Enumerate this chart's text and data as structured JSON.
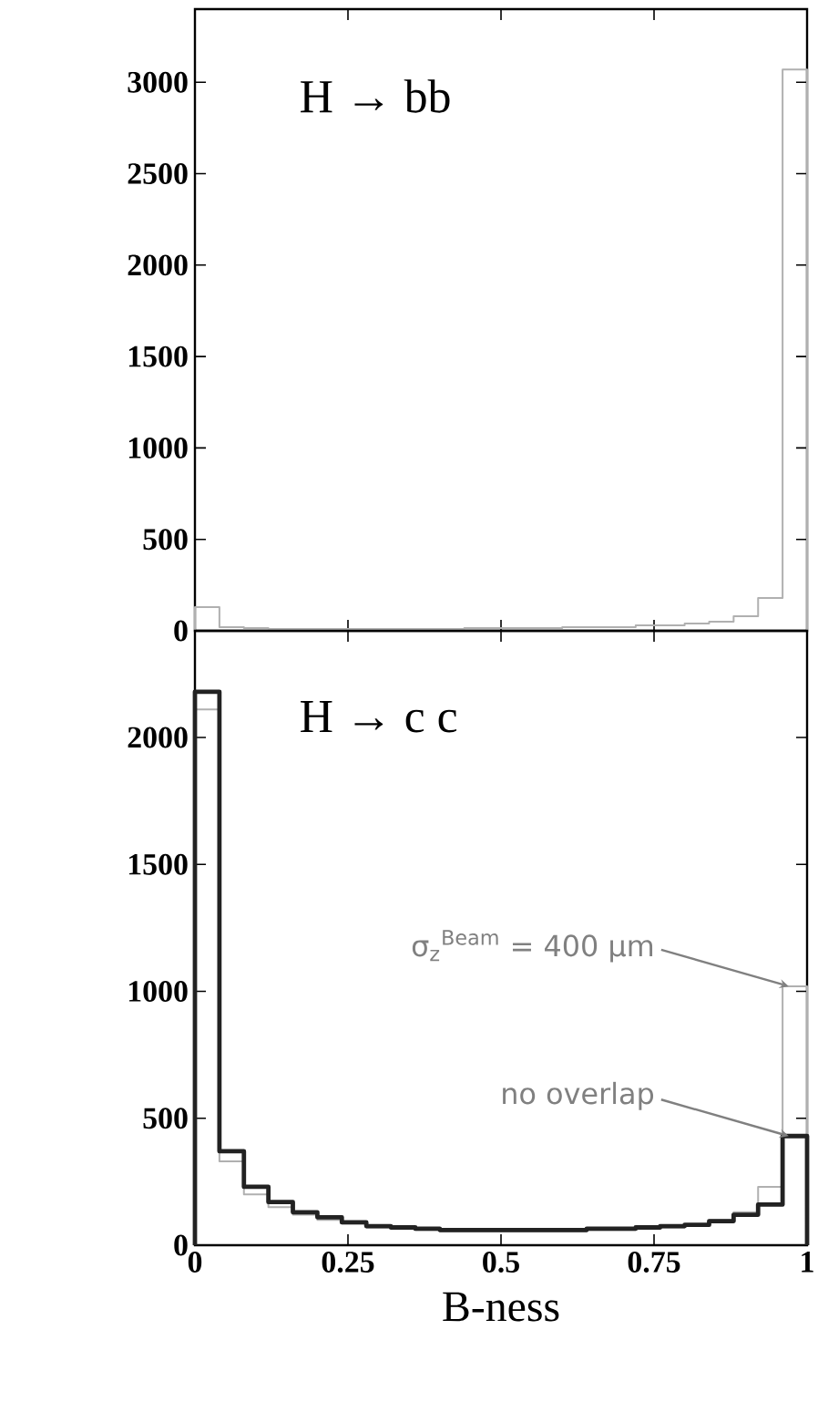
{
  "chart_data": [
    {
      "type": "histogram",
      "title": "H → bb",
      "bins": [
        0,
        0.04,
        0.08,
        0.12,
        0.16,
        0.2,
        0.24,
        0.28,
        0.32,
        0.36,
        0.4,
        0.44,
        0.48,
        0.52,
        0.56,
        0.6,
        0.64,
        0.68,
        0.72,
        0.76,
        0.8,
        0.84,
        0.88,
        0.92,
        0.96,
        1.0
      ],
      "series": [
        {
          "color": "#b0b0b0",
          "values": [
            130,
            20,
            15,
            10,
            10,
            10,
            10,
            10,
            10,
            10,
            10,
            15,
            15,
            15,
            15,
            20,
            20,
            20,
            30,
            30,
            40,
            50,
            80,
            180,
            3070
          ]
        }
      ],
      "xlim": [
        0,
        1
      ],
      "xticks": [
        {
          "value": 0,
          "label": null
        },
        {
          "value": 0.25,
          "label": null
        },
        {
          "value": 0.5,
          "label": null
        },
        {
          "value": 0.75,
          "label": null
        },
        {
          "value": 1,
          "label": null
        }
      ],
      "ylim": [
        0,
        3400
      ],
      "yticks": [
        0,
        500,
        1000,
        1500,
        2000,
        2500,
        3000
      ],
      "tick_labels": "y"
    },
    {
      "type": "histogram",
      "title": "H → c c",
      "xlabel": "B-ness",
      "bins": [
        0,
        0.04,
        0.08,
        0.12,
        0.16,
        0.2,
        0.24,
        0.28,
        0.32,
        0.36,
        0.4,
        0.44,
        0.48,
        0.52,
        0.56,
        0.6,
        0.64,
        0.68,
        0.72,
        0.76,
        0.8,
        0.84,
        0.88,
        0.92,
        0.96,
        1.0
      ],
      "series": [
        {
          "color": "#b0b0b0",
          "values": [
            2110,
            330,
            200,
            150,
            120,
            100,
            85,
            70,
            65,
            60,
            55,
            55,
            55,
            55,
            55,
            55,
            60,
            60,
            65,
            70,
            80,
            100,
            130,
            230,
            1020
          ]
        },
        {
          "color": "#222222",
          "values": [
            2180,
            370,
            230,
            170,
            130,
            110,
            90,
            75,
            70,
            65,
            60,
            60,
            60,
            60,
            60,
            60,
            65,
            65,
            70,
            75,
            80,
            95,
            120,
            160,
            430
          ]
        }
      ],
      "xlim": [
        0,
        1
      ],
      "xticks": [
        0,
        0.25,
        0.5,
        0.75,
        1
      ],
      "ylim": [
        0,
        2420
      ],
      "yticks": [
        0,
        500,
        1000,
        1500,
        2000
      ],
      "annotations": [
        {
          "text": "σ$_{z}$$^{Beam}$ = 400 μm",
          "x": 0.97,
          "y": 1020
        },
        {
          "text": "no overlap",
          "x": 0.97,
          "y": 430
        }
      ]
    }
  ]
}
